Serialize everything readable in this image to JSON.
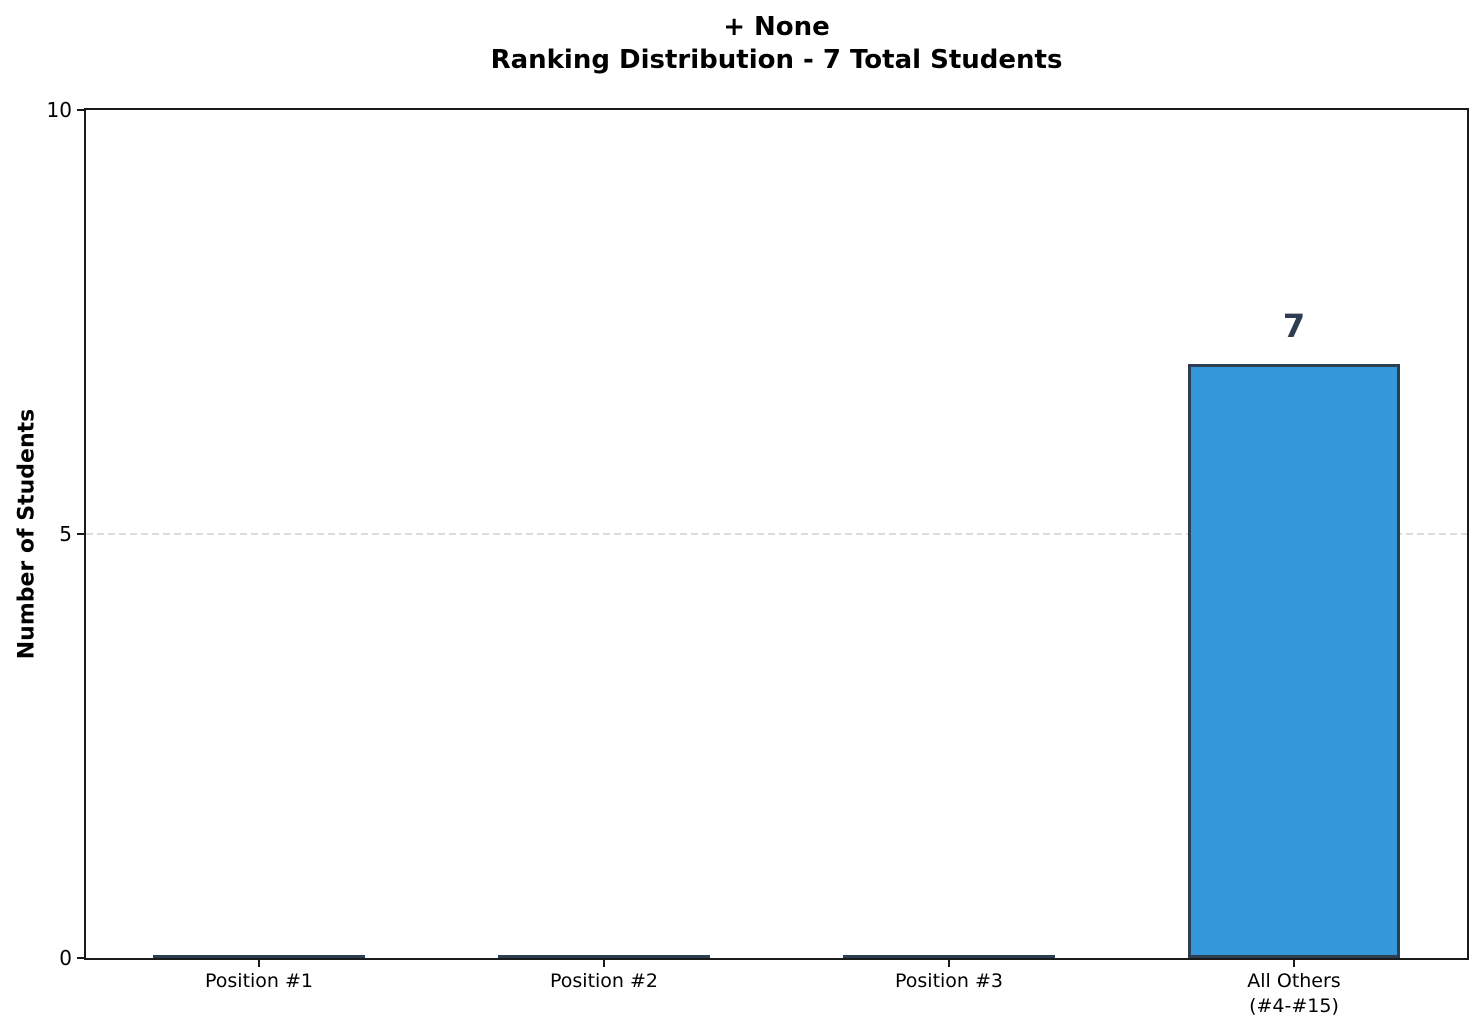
{
  "figure": {
    "title_line1": "+ None",
    "title_line2": "Ranking Distribution - 7 Total Students"
  },
  "chart_data": {
    "type": "bar",
    "title": "+ None\nRanking Distribution - 7 Total Students",
    "categories": [
      "Position #1",
      "Position #2",
      "Position #3",
      "All Others\n(#4-#15)"
    ],
    "values": [
      0,
      0,
      0,
      7
    ],
    "bar_value_labels": [
      "",
      "",
      "",
      "7"
    ],
    "xlabel": "",
    "ylabel": "Number of Students",
    "ylim": [
      0,
      10
    ],
    "yticks": [
      0,
      5,
      10
    ],
    "grid": {
      "axis": "y",
      "style": "dashed"
    },
    "legend_position": "none",
    "colors": {
      "bar_fill": "#3498db",
      "bar_edge": "#2c3e50",
      "value_label": "#2c3e50",
      "axis": "#1a1a1a",
      "gridline": "#dcdcdc",
      "background": "#ffffff"
    }
  }
}
